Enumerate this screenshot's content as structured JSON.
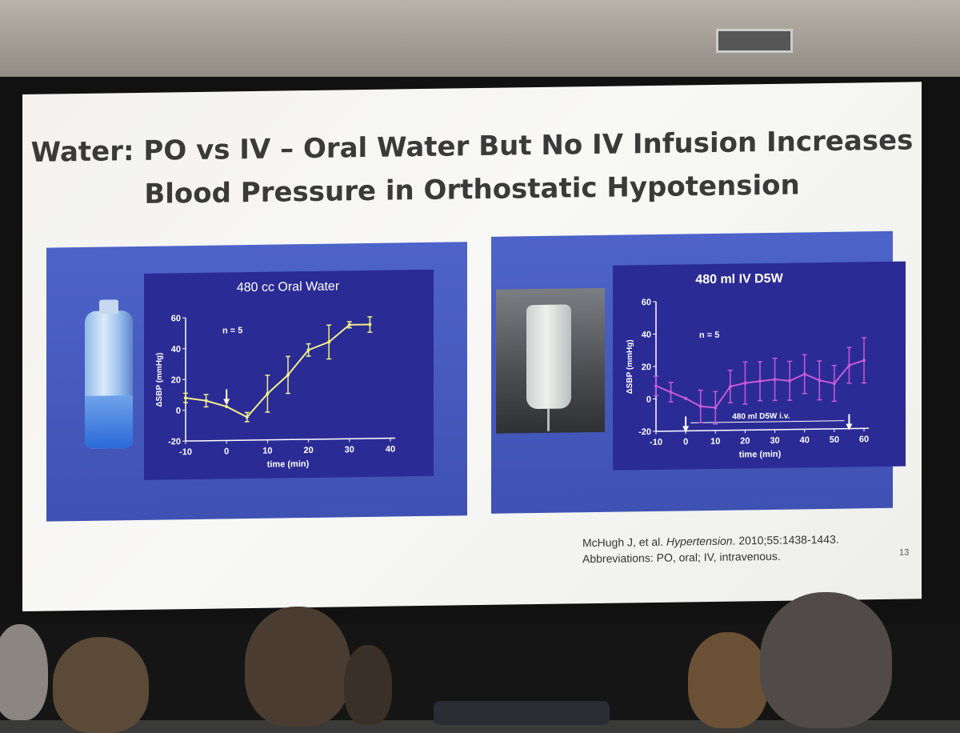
{
  "slide": {
    "title_line1": "Water: PO vs IV – Oral Water But No IV Infusion Increases",
    "title_line2": "Blood Pressure in Orthostatic Hypotension",
    "citation_prefix": "McHugh J, et al. ",
    "citation_journal": "Hypertension",
    "citation_suffix": ". 2010;55:1438-1443.",
    "abbreviations": "Abbreviations: PO, oral; IV, intravenous.",
    "page_number": "13"
  },
  "colors": {
    "panel_blue": "#4a5fc4",
    "plot_bg": "#2b2b96",
    "left_series": "#f0f08a",
    "right_series": "#c85ad6"
  },
  "chart_data": [
    {
      "type": "line",
      "title": "480 cc Oral Water",
      "xlabel": "time (min)",
      "ylabel": "ΔSBP (mmHg)",
      "xlim": [
        -10,
        40
      ],
      "ylim": [
        -20,
        60
      ],
      "xticks": [
        -10,
        0,
        10,
        20,
        30,
        40
      ],
      "yticks": [
        -20,
        0,
        20,
        40,
        60
      ],
      "annotation": "n = 5",
      "arrow_at_x": 0,
      "series": [
        {
          "x": [
            -10,
            -5,
            0,
            5,
            10,
            15,
            20,
            25,
            30,
            35
          ],
          "y": [
            8,
            6,
            2,
            -5,
            10,
            22,
            38,
            43,
            54,
            54
          ],
          "err": [
            3,
            4,
            0,
            3,
            12,
            12,
            4,
            11,
            2,
            5
          ]
        }
      ]
    },
    {
      "type": "line",
      "title": "480 ml IV D5W",
      "xlabel": "time (min)",
      "ylabel": "ΔSBP (mmHg)",
      "xlim": [
        -10,
        60
      ],
      "ylim": [
        -20,
        60
      ],
      "xticks": [
        -10,
        0,
        10,
        20,
        30,
        40,
        50,
        60
      ],
      "yticks": [
        -20,
        0,
        20,
        40,
        60
      ],
      "annotation": "n = 5",
      "bar_label": "480 ml D5W i.v.",
      "arrows_at_x": [
        0,
        55
      ],
      "series": [
        {
          "x": [
            -10,
            -5,
            0,
            5,
            10,
            15,
            20,
            25,
            30,
            35,
            40,
            45,
            50,
            55,
            60
          ],
          "y": [
            8,
            4,
            0,
            -5,
            -6,
            7,
            9,
            10,
            11,
            10,
            14,
            10,
            8,
            19,
            22
          ],
          "err": [
            6,
            6,
            0,
            10,
            10,
            10,
            13,
            12,
            13,
            12,
            12,
            12,
            11,
            11,
            14
          ]
        }
      ]
    }
  ]
}
